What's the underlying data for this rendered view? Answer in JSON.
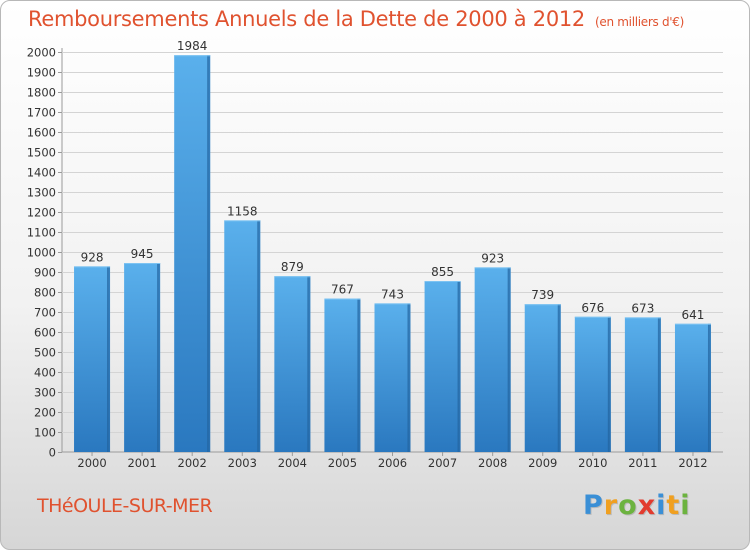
{
  "header": {
    "title": "Remboursements Annuels de la Dette de 2000 à 2012",
    "subtitle": "(en milliers d'€)"
  },
  "footer": {
    "town": "THéOULE-SUR-MER",
    "logo_letters": [
      "P",
      "r",
      "o",
      "x",
      "i",
      "t",
      "i"
    ],
    "logo_colors": [
      "#3a8fd6",
      "#f0a020",
      "#6cb33f",
      "#e23b2e",
      "#3a8fd6",
      "#f0a020",
      "#6cb33f"
    ]
  },
  "chart_data": {
    "type": "bar",
    "title": "Remboursements Annuels de la Dette de 2000 à 2012",
    "subtitle": "(en milliers d'€)",
    "categories": [
      "2000",
      "2001",
      "2002",
      "2003",
      "2004",
      "2005",
      "2006",
      "2007",
      "2008",
      "2009",
      "2010",
      "2011",
      "2012"
    ],
    "values": [
      928,
      945,
      1984,
      1158,
      879,
      767,
      743,
      855,
      923,
      739,
      676,
      673,
      641
    ],
    "ylim": [
      0,
      2000
    ],
    "ytick_step": 100,
    "grid": true,
    "xlabel": "",
    "ylabel": "",
    "bar_color": "#3c95da"
  }
}
